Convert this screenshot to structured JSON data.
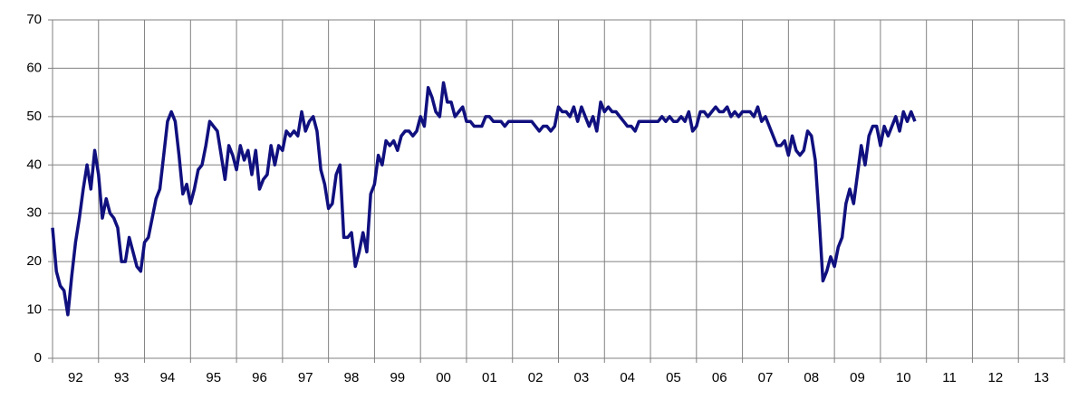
{
  "chart_data": {
    "type": "line",
    "xlim": [
      1992,
      2014
    ],
    "xticks": [
      {
        "value": 1992.5,
        "label": "92"
      },
      {
        "value": 1993.5,
        "label": "93"
      },
      {
        "value": 1994.5,
        "label": "94"
      },
      {
        "value": 1995.5,
        "label": "95"
      },
      {
        "value": 1996.5,
        "label": "96"
      },
      {
        "value": 1997.5,
        "label": "97"
      },
      {
        "value": 1998.5,
        "label": "98"
      },
      {
        "value": 1999.5,
        "label": "99"
      },
      {
        "value": 2000.5,
        "label": "00"
      },
      {
        "value": 2001.5,
        "label": "01"
      },
      {
        "value": 2002.5,
        "label": "02"
      },
      {
        "value": 2003.5,
        "label": "03"
      },
      {
        "value": 2004.5,
        "label": "04"
      },
      {
        "value": 2005.5,
        "label": "05"
      },
      {
        "value": 2006.5,
        "label": "06"
      },
      {
        "value": 2007.5,
        "label": "07"
      },
      {
        "value": 2008.5,
        "label": "08"
      },
      {
        "value": 2009.5,
        "label": "09"
      },
      {
        "value": 2010.5,
        "label": "10"
      },
      {
        "value": 2011.5,
        "label": "11"
      },
      {
        "value": 2012.5,
        "label": "12"
      },
      {
        "value": 2013.5,
        "label": "13"
      }
    ],
    "ylim": [
      0,
      70
    ],
    "yticks": [
      0,
      10,
      20,
      30,
      40,
      50,
      60,
      70
    ],
    "grid": true,
    "x": [
      1992,
      1992.083,
      1992.167,
      1992.25,
      1992.333,
      1992.417,
      1992.5,
      1992.583,
      1992.667,
      1992.75,
      1992.833,
      1992.917,
      1993,
      1993.083,
      1993.167,
      1993.25,
      1993.333,
      1993.417,
      1993.5,
      1993.583,
      1993.667,
      1993.75,
      1993.833,
      1993.917,
      1994,
      1994.083,
      1994.167,
      1994.25,
      1994.333,
      1994.417,
      1994.5,
      1994.583,
      1994.667,
      1994.75,
      1994.833,
      1994.917,
      1995,
      1995.083,
      1995.167,
      1995.25,
      1995.333,
      1995.417,
      1995.5,
      1995.583,
      1995.667,
      1995.75,
      1995.833,
      1995.917,
      1996,
      1996.083,
      1996.167,
      1996.25,
      1996.333,
      1996.417,
      1996.5,
      1996.583,
      1996.667,
      1996.75,
      1996.833,
      1996.917,
      1997,
      1997.083,
      1997.167,
      1997.25,
      1997.333,
      1997.417,
      1997.5,
      1997.583,
      1997.667,
      1997.75,
      1997.833,
      1997.917,
      1998,
      1998.083,
      1998.167,
      1998.25,
      1998.333,
      1998.417,
      1998.5,
      1998.583,
      1998.667,
      1998.75,
      1998.833,
      1998.917,
      1999,
      1999.083,
      1999.167,
      1999.25,
      1999.333,
      1999.417,
      1999.5,
      1999.583,
      1999.667,
      1999.75,
      1999.833,
      1999.917,
      2000,
      2000.083,
      2000.167,
      2000.25,
      2000.333,
      2000.417,
      2000.5,
      2000.583,
      2000.667,
      2000.75,
      2000.833,
      2000.917,
      2001,
      2001.083,
      2001.167,
      2001.25,
      2001.333,
      2001.417,
      2001.5,
      2001.583,
      2001.667,
      2001.75,
      2001.833,
      2001.917,
      2002,
      2002.083,
      2002.167,
      2002.25,
      2002.333,
      2002.417,
      2002.5,
      2002.583,
      2002.667,
      2002.75,
      2002.833,
      2002.917,
      2003,
      2003.083,
      2003.167,
      2003.25,
      2003.333,
      2003.417,
      2003.5,
      2003.583,
      2003.667,
      2003.75,
      2003.833,
      2003.917,
      2004,
      2004.083,
      2004.167,
      2004.25,
      2004.333,
      2004.417,
      2004.5,
      2004.583,
      2004.667,
      2004.75,
      2004.833,
      2004.917,
      2005,
      2005.083,
      2005.167,
      2005.25,
      2005.333,
      2005.417,
      2005.5,
      2005.583,
      2005.667,
      2005.75,
      2005.833,
      2005.917,
      2006,
      2006.083,
      2006.167,
      2006.25,
      2006.333,
      2006.417,
      2006.5,
      2006.583,
      2006.667,
      2006.75,
      2006.833,
      2006.917,
      2007,
      2007.083,
      2007.167,
      2007.25,
      2007.333,
      2007.417,
      2007.5,
      2007.583,
      2007.667,
      2007.75,
      2007.833,
      2007.917,
      2008,
      2008.083,
      2008.167,
      2008.25,
      2008.333,
      2008.417,
      2008.5,
      2008.583,
      2008.667,
      2008.75,
      2008.833,
      2008.917,
      2009,
      2009.083,
      2009.167,
      2009.25,
      2009.333,
      2009.417,
      2009.5,
      2009.583,
      2009.667,
      2009.75,
      2009.833,
      2009.917,
      2010,
      2010.083,
      2010.167,
      2010.25,
      2010.333,
      2010.417,
      2010.5,
      2010.583,
      2010.667,
      2010.75
    ],
    "series": [
      {
        "color": "#10107f",
        "values": [
          27,
          18,
          15,
          14,
          9,
          17,
          24,
          29,
          35,
          40,
          35,
          43,
          38,
          29,
          33,
          30,
          29,
          27,
          20,
          20,
          25,
          22,
          19,
          18,
          24,
          25,
          29,
          33,
          35,
          42,
          49,
          51,
          49,
          42,
          34,
          36,
          32,
          35,
          39,
          40,
          44,
          49,
          48,
          47,
          42,
          37,
          44,
          42,
          39,
          44,
          41,
          43,
          38,
          43,
          35,
          37,
          38,
          44,
          40,
          44,
          43,
          47,
          46,
          47,
          46,
          51,
          47,
          49,
          50,
          47,
          39,
          36,
          31,
          32,
          38,
          40,
          25,
          25,
          26,
          19,
          22,
          26,
          22,
          34,
          36,
          42,
          40,
          45,
          44,
          45,
          43,
          46,
          47,
          47,
          46,
          47,
          50,
          48,
          56,
          54,
          51,
          50,
          57,
          53,
          53,
          50,
          51,
          52,
          49,
          49,
          48,
          48,
          48,
          50,
          50,
          49,
          49,
          49,
          48,
          49,
          49,
          49,
          49,
          49,
          49,
          49,
          48,
          47,
          48,
          48,
          47,
          48,
          52,
          51,
          51,
          50,
          52,
          49,
          52,
          50,
          48,
          50,
          47,
          53,
          51,
          52,
          51,
          51,
          50,
          49,
          48,
          48,
          47,
          49,
          49,
          49,
          49,
          49,
          49,
          50,
          49,
          50,
          49,
          49,
          50,
          49,
          51,
          47,
          48,
          51,
          51,
          50,
          51,
          52,
          51,
          51,
          52,
          50,
          51,
          50,
          51,
          51,
          51,
          50,
          52,
          49,
          50,
          48,
          46,
          44,
          44,
          45,
          42,
          46,
          43,
          42,
          43,
          47,
          46,
          41,
          29,
          16,
          18,
          21,
          19,
          23,
          25,
          32,
          35,
          32,
          38,
          44,
          40,
          46,
          48,
          48,
          44,
          48,
          46,
          48,
          50,
          47,
          51,
          49,
          51,
          49
        ]
      }
    ]
  }
}
